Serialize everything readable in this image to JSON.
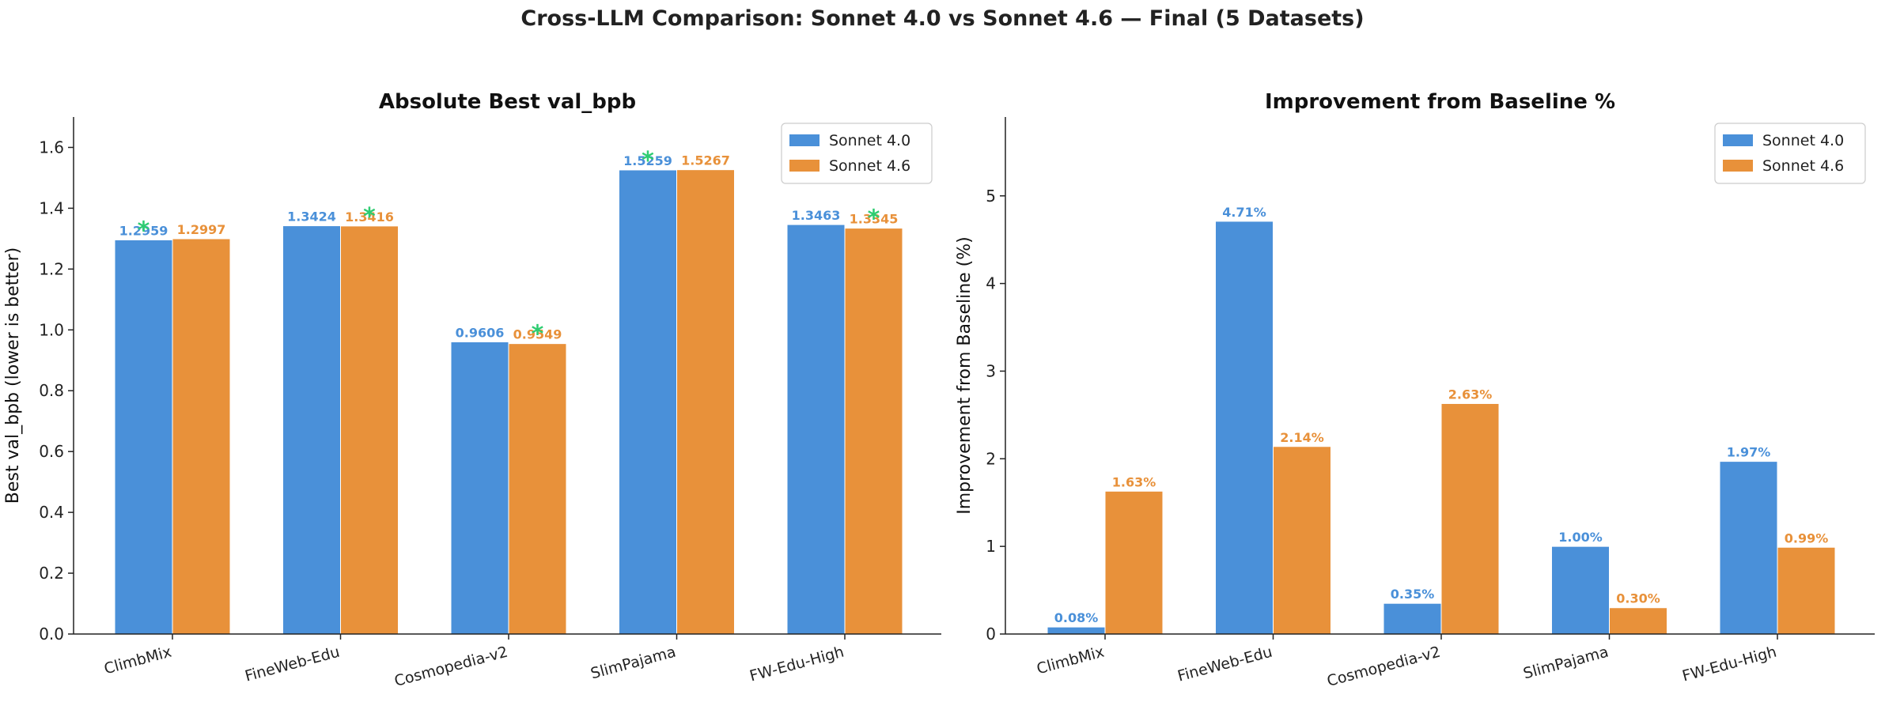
{
  "suptitle": "Cross-LLM Comparison: Sonnet 4.0 vs Sonnet 4.6 — Final (5 Datasets)",
  "colors": {
    "series_a": "#4A90D9",
    "series_b": "#E8913A",
    "star": "#2ECC71"
  },
  "chart_data": [
    {
      "type": "bar",
      "title": "Absolute Best val_bpb",
      "xlabel": "",
      "ylabel": "Best val_bpb (lower is better)",
      "ylim": [
        0,
        1.7
      ],
      "yticks": [
        "0.0",
        "0.2",
        "0.4",
        "0.6",
        "0.8",
        "1.0",
        "1.2",
        "1.4",
        "1.6"
      ],
      "categories": [
        "ClimbMix",
        "FineWeb-Edu",
        "Cosmopedia-v2",
        "SlimPajama",
        "FW-Edu-High"
      ],
      "series": [
        {
          "name": "Sonnet 4.0",
          "values": [
            1.2959,
            1.3424,
            0.9606,
            1.5259,
            1.3463
          ],
          "labels": [
            "1.2959",
            "1.3424",
            "0.9606",
            "1.5259",
            "1.3463"
          ]
        },
        {
          "name": "Sonnet 4.6",
          "values": [
            1.2997,
            1.3416,
            0.9549,
            1.5267,
            1.3345
          ],
          "labels": [
            "1.2997",
            "1.3416",
            "0.9549",
            "1.5267",
            "1.3345"
          ]
        }
      ],
      "best_marker": "*",
      "best_series_index": [
        0,
        1,
        1,
        0,
        1
      ],
      "legend": "top-right",
      "grid": false
    },
    {
      "type": "bar",
      "title": "Improvement from Baseline %",
      "xlabel": "",
      "ylabel": "Improvement from Baseline (%)",
      "ylim": [
        0,
        5.9
      ],
      "yticks": [
        "0",
        "1",
        "2",
        "3",
        "4",
        "5"
      ],
      "categories": [
        "ClimbMix",
        "FineWeb-Edu",
        "Cosmopedia-v2",
        "SlimPajama",
        "FW-Edu-High"
      ],
      "series": [
        {
          "name": "Sonnet 4.0",
          "values": [
            0.08,
            4.71,
            0.35,
            1.0,
            1.97
          ],
          "labels": [
            "0.08%",
            "4.71%",
            "0.35%",
            "1.00%",
            "1.97%"
          ]
        },
        {
          "name": "Sonnet 4.6",
          "values": [
            1.63,
            2.14,
            2.63,
            0.3,
            0.99
          ],
          "labels": [
            "1.63%",
            "2.14%",
            "2.63%",
            "0.30%",
            "0.99%"
          ]
        }
      ],
      "legend": "top-right",
      "grid": false
    }
  ]
}
